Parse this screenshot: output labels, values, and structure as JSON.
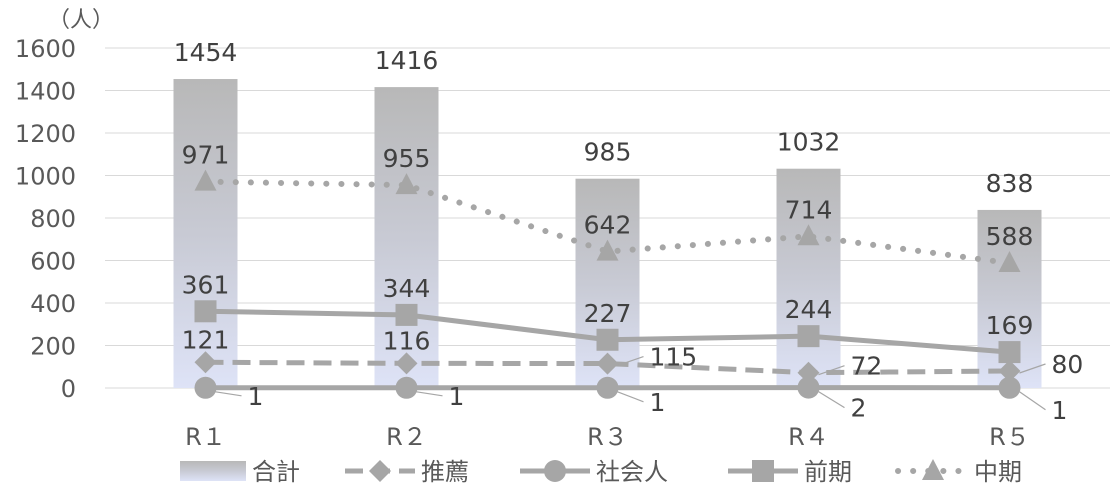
{
  "chart_data": {
    "type": "bar",
    "unit_label": "（人）",
    "categories": [
      "R１",
      "R２",
      "R３",
      "R４",
      "R５"
    ],
    "ylim": [
      0,
      1600
    ],
    "yticks": [
      0,
      200,
      400,
      600,
      800,
      1000,
      1200,
      1400,
      1600
    ],
    "grid": true,
    "legend_position": "bottom",
    "series": [
      {
        "name": "合計",
        "kind": "bar",
        "color": "#bdbdbd",
        "values": [
          1454,
          1416,
          985,
          1032,
          838
        ]
      },
      {
        "name": "推薦",
        "kind": "line",
        "style": "dashed",
        "marker": "diamond",
        "color": "#a6a6a6",
        "values": [
          121,
          116,
          115,
          72,
          80
        ]
      },
      {
        "name": "社会人",
        "kind": "line",
        "style": "solid",
        "marker": "circle",
        "color": "#a6a6a6",
        "values": [
          1,
          1,
          1,
          2,
          1
        ]
      },
      {
        "name": "前期",
        "kind": "line",
        "style": "solid",
        "marker": "square",
        "color": "#a6a6a6",
        "values": [
          361,
          344,
          227,
          244,
          169
        ]
      },
      {
        "name": "中期",
        "kind": "line",
        "style": "dotted",
        "marker": "triangle",
        "color": "#a6a6a6",
        "values": [
          971,
          955,
          642,
          714,
          588
        ]
      }
    ]
  }
}
